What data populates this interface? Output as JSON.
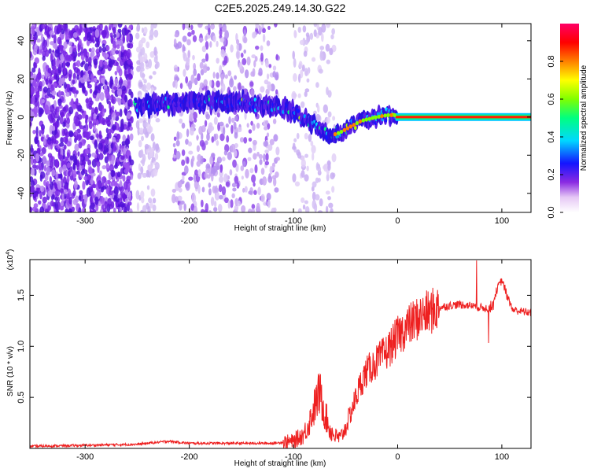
{
  "title": "C2E5.2025.249.14.30.G22",
  "chart_data": [
    {
      "type": "heatmap",
      "name": "spectrogram",
      "xlabel": "Height of straight line (km)",
      "ylabel": "Frequency (Hz)",
      "xlim": [
        -353,
        128
      ],
      "ylim": [
        -50,
        49
      ],
      "x_ticks": [
        -300,
        -200,
        -100,
        0,
        100
      ],
      "x_tick_labels": [
        "-300",
        "-200",
        "-100",
        "0",
        "100"
      ],
      "y_ticks": [
        -40,
        -20,
        0,
        20,
        40
      ],
      "y_tick_labels": [
        "-40",
        "-20",
        "0",
        "20",
        "40"
      ],
      "ridge": {
        "description": "dominant frequency track",
        "x": [
          -250,
          -220,
          -190,
          -160,
          -130,
          -105,
          -90,
          -75,
          -65,
          -55,
          -45,
          -35,
          -20,
          -10,
          0,
          20,
          60,
          100,
          128
        ],
        "y": [
          6,
          7,
          8,
          8,
          6,
          4,
          -1,
          -6,
          -10,
          -8,
          -5,
          -2,
          0,
          1,
          1,
          0,
          0,
          0,
          0
        ]
      },
      "noise_regions": [
        {
          "x_range": [
            -353,
            -255
          ],
          "density": "high"
        },
        {
          "x_range": [
            -250,
            -230
          ],
          "density": "low"
        },
        {
          "x_range": [
            -215,
            -115
          ],
          "density": "medium"
        },
        {
          "x_range": [
            -100,
            -60
          ],
          "density": "low"
        }
      ],
      "colorbar": {
        "label": "Normalized spectral amplitude",
        "range": [
          0,
          1
        ],
        "ticks": [
          0.0,
          0.2,
          0.4,
          0.6,
          0.8
        ],
        "tick_labels": [
          "0.0",
          "0.2",
          "0.4",
          "0.6",
          "0.8"
        ],
        "colors": [
          "#ffffff",
          "#e6c8f5",
          "#8a2be2",
          "#1414ff",
          "#00d8ff",
          "#00ff80",
          "#80ff00",
          "#ffff00",
          "#ff8000",
          "#ff0000",
          "#ff0066"
        ]
      }
    },
    {
      "type": "line",
      "name": "snr",
      "xlabel": "Height of straight line (km)",
      "ylabel": "SNR (10 * v/v)",
      "y_multiplier": "(x10",
      "y_multiplier_exp": "4",
      "y_multiplier_close": ")",
      "xlim": [
        -353,
        128
      ],
      "ylim": [
        0,
        1.85
      ],
      "x_ticks": [
        -300,
        -200,
        -100,
        0,
        100
      ],
      "x_tick_labels": [
        "-300",
        "-200",
        "-100",
        "0",
        "100"
      ],
      "y_ticks": [
        0.5,
        1.0,
        1.5
      ],
      "y_tick_labels": [
        "0.5",
        "1.0",
        "1.5"
      ],
      "color": "#ee2020",
      "series": [
        {
          "name": "SNR",
          "x": [
            -353,
            -300,
            -250,
            -220,
            -200,
            -150,
            -120,
            -100,
            -90,
            -85,
            -80,
            -75,
            -70,
            -65,
            -60,
            -55,
            -50,
            -45,
            -40,
            -35,
            -30,
            -25,
            -20,
            -10,
            0,
            10,
            20,
            30,
            40,
            50,
            60,
            70,
            80,
            90,
            95,
            100,
            110,
            120,
            128
          ],
          "y": [
            0.02,
            0.03,
            0.04,
            0.07,
            0.05,
            0.05,
            0.05,
            0.07,
            0.14,
            0.25,
            0.4,
            0.55,
            0.35,
            0.18,
            0.12,
            0.1,
            0.2,
            0.35,
            0.5,
            0.65,
            0.75,
            0.8,
            0.85,
            0.95,
            1.1,
            1.2,
            1.28,
            1.33,
            1.38,
            1.4,
            1.41,
            1.4,
            1.38,
            1.37,
            1.55,
            1.65,
            1.36,
            1.34,
            1.33
          ]
        }
      ]
    }
  ]
}
